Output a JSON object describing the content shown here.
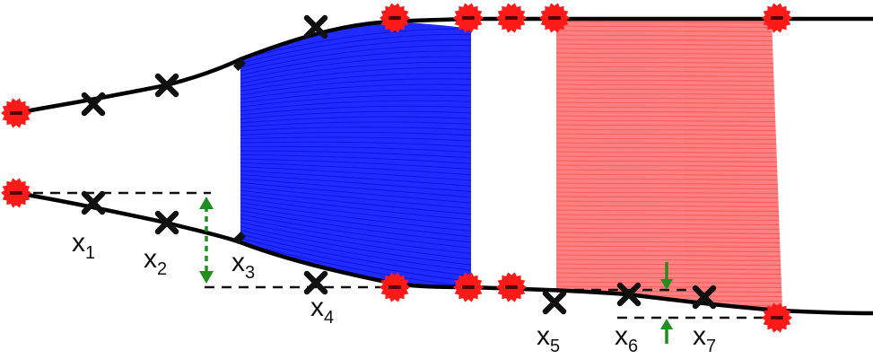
{
  "diagram": {
    "colors": {
      "background": "#ffffff",
      "curve": "#000000",
      "blue_region": "#1f2bff",
      "blue_line": "#0a0fd8",
      "red_region": "#ff8080",
      "red_line": "#e84040",
      "node": "#ff1a1a",
      "cross": "#111111",
      "arrow": "#1f8f1f"
    },
    "icons": {
      "node": "red-serrated-circle-icon",
      "point": "black-cross-icon",
      "gap": "green-double-arrow-icon"
    },
    "labels": [
      {
        "id": "x1",
        "base": "x",
        "sub": "1"
      },
      {
        "id": "x2",
        "base": "x",
        "sub": "2"
      },
      {
        "id": "x3",
        "base": "x",
        "sub": "3"
      },
      {
        "id": "x4",
        "base": "x",
        "sub": "4"
      },
      {
        "id": "x5",
        "base": "x",
        "sub": "5"
      },
      {
        "id": "x6",
        "base": "x",
        "sub": "6"
      },
      {
        "id": "x7",
        "base": "x",
        "sub": "7"
      }
    ]
  }
}
